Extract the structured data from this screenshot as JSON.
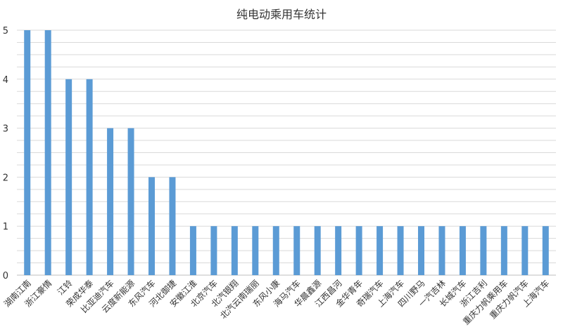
{
  "chart_data": {
    "type": "bar",
    "title": "纯电动乘用车统计",
    "xlabel": "",
    "ylabel": "",
    "ylim": [
      0,
      5
    ],
    "yticks": [
      0,
      1,
      2,
      3,
      4,
      5
    ],
    "grid": true,
    "legend": "none",
    "categories": [
      "湖南江南",
      "浙江豪情",
      "江铃",
      "荣成华泰",
      "比亚迪汽车",
      "云度新能源",
      "东风汽车",
      "河北御捷",
      "安徽江淮",
      "北京汽车",
      "北汽银翔",
      "北汽云南瑞丽",
      "东风小康",
      "海马汽车",
      "华晨鑫源",
      "江西昌河",
      "金华青年",
      "奇瑞汽车",
      "上海汽车",
      "四川野马",
      "一汽吉林",
      "长城汽车",
      "浙江吉利",
      "重庆力帆乘用车",
      "重庆力帆汽车",
      "上海汽车"
    ],
    "values": [
      5,
      5,
      4,
      4,
      3,
      3,
      2,
      2,
      1,
      1,
      1,
      1,
      1,
      1,
      1,
      1,
      1,
      1,
      1,
      1,
      1,
      1,
      1,
      1,
      1,
      1
    ],
    "colors": {
      "bar": "#5b9bd5",
      "grid": "#d9d9d9",
      "text": "#333333"
    }
  }
}
